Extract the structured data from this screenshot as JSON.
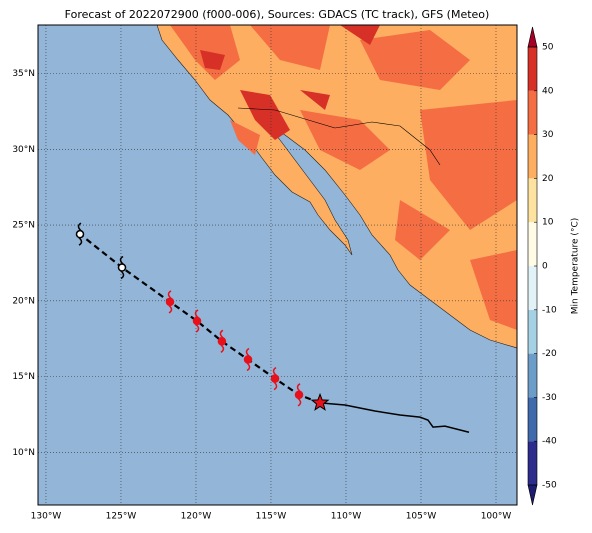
{
  "title": "Forecast of 2022072900 (f000-006), Sources: GDACS (TC track), GFS (Meteo)",
  "map": {
    "xlim": [
      -130.53,
      -98.6
    ],
    "ylim": [
      6.53,
      38.2
    ],
    "ocean_color": "#92b5d8",
    "xticks": [
      {
        "value": -130,
        "label": "130°W"
      },
      {
        "value": -125,
        "label": "125°W"
      },
      {
        "value": -120,
        "label": "120°W"
      },
      {
        "value": -115,
        "label": "115°W"
      },
      {
        "value": -110,
        "label": "110°W"
      },
      {
        "value": -105,
        "label": "105°W"
      },
      {
        "value": -100,
        "label": "100°W"
      }
    ],
    "yticks": [
      {
        "value": 10,
        "label": "10°N"
      },
      {
        "value": 15,
        "label": "15°N"
      },
      {
        "value": 20,
        "label": "20°N"
      },
      {
        "value": 25,
        "label": "25°N"
      },
      {
        "value": 30,
        "label": "30°N"
      },
      {
        "value": 35,
        "label": "35°N"
      }
    ],
    "grid": true
  },
  "track": {
    "observed": {
      "lon": [
        -111.73,
        -110.07,
        -108.07,
        -106.4,
        -105.07,
        -104.53,
        -104.2,
        -103.4,
        -101.8
      ],
      "lat": [
        13.27,
        13.13,
        12.73,
        12.47,
        12.33,
        12.13,
        11.67,
        11.73,
        11.33
      ],
      "color": "#000000"
    },
    "current": {
      "lon": -111.73,
      "lat": 13.27,
      "color": "#e8101a"
    },
    "forecast": {
      "lon": [
        -113.13,
        -114.73,
        -116.53,
        -118.27,
        -119.93,
        -121.73,
        -124.93,
        -127.73
      ],
      "lat": [
        13.8,
        14.87,
        16.13,
        17.33,
        18.67,
        19.93,
        22.2,
        24.4
      ],
      "colors": [
        "#e8101a",
        "#e8101a",
        "#e8101a",
        "#e8101a",
        "#e8101a",
        "#e8101a",
        "#000000",
        "#000000"
      ]
    }
  },
  "colorbar": {
    "label": "Min Temperature (°C)",
    "ylim": [
      -50,
      50
    ],
    "ticks": [
      -50,
      -40,
      -30,
      -20,
      -10,
      0,
      10,
      20,
      30,
      40,
      50
    ],
    "colors": [
      "#2c2c8c",
      "#3f6aab",
      "#6b9dc8",
      "#a5d1e4",
      "#e2f3f8",
      "#fffbe6",
      "#fee3a0",
      "#fdae61",
      "#f46d43",
      "#d73027"
    ],
    "under_color": "#1c1c70",
    "over_color": "#a50026"
  }
}
